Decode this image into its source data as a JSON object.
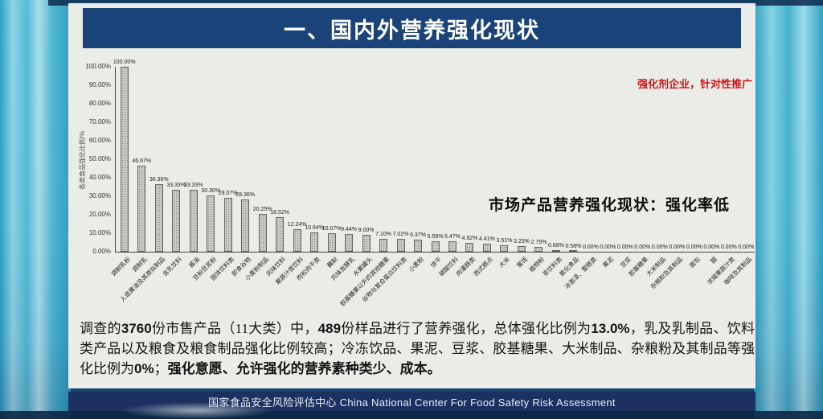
{
  "banner": {
    "title": "一、国内外营养强化现状"
  },
  "annotations": {
    "top_right_red": "强化剂企业，针对性推广",
    "chart_callout": "市场产品营养强化现状：强化率低"
  },
  "chart_data": {
    "type": "bar",
    "title": "",
    "xlabel": "",
    "ylabel": "各类食品强化比例/%",
    "ylim": [
      0,
      100
    ],
    "grid": false,
    "legend": "none",
    "ytick_labels": [
      "0.00%",
      "10.00%",
      "20.00%",
      "30.00%",
      "40.00%",
      "50.00%",
      "60.00%",
      "70.00%",
      "80.00%",
      "90.00%",
      "100.00%"
    ],
    "categories": [
      "调制乳粉",
      "调制乳",
      "人造黄油及其类似制品",
      "含乳饮料",
      "酱油",
      "豆粉豆浆粉",
      "固体饮料类",
      "即食谷物",
      "小麦粉制品",
      "风味饮料",
      "果蔬汁类饮料",
      "肉松肉干类",
      "藕粉",
      "风味发酵乳",
      "水果罐头",
      "胶基糖果以外的其他糖果",
      "谷物与复合蛋白饮料类",
      "小麦粉",
      "饼干",
      "碳酸饮料",
      "肉灌肠类",
      "西式糕点",
      "大米",
      "蜜饯",
      "植物粉",
      "茶饮料类",
      "膨化食品",
      "冰激凌、雪糕类",
      "果泥",
      "豆浆",
      "胶基糖果",
      "大米制品",
      "杂粮粉及其制品",
      "面包",
      "醋",
      "浓缩果蔬汁类",
      "咖啡及其制品"
    ],
    "values": [
      100.0,
      46.67,
      36.36,
      33.33,
      33.33,
      30.3,
      29.07,
      28.36,
      20.25,
      18.52,
      12.24,
      10.64,
      10.07,
      9.44,
      9.0,
      7.1,
      7.02,
      6.37,
      5.59,
      5.47,
      4.92,
      4.41,
      3.51,
      3.23,
      2.79,
      0.68,
      0.58,
      0,
      0,
      0,
      0,
      0,
      0,
      0,
      0,
      0,
      0
    ],
    "value_labels": [
      "100.00%",
      "46.67%",
      "36.36%",
      "33.33%",
      "33.33%",
      "30.30%",
      "29.07%",
      "28.36%",
      "20.25%",
      "18.52%",
      "12.24%",
      "10.64%",
      "10.07%",
      "9.44%",
      "9.00%",
      "7.10%",
      "7.02%",
      "6.37%",
      "5.59%",
      "5.47%",
      "4.92%",
      "4.41%",
      "3.51%",
      "3.23%",
      "2.79%",
      "0.68%",
      "0.58%",
      "0.00%",
      "0.00%",
      "0.00%",
      "0.00%",
      "0.00%",
      "0.00%",
      "0.00%",
      "0.00%",
      "0.00%",
      "0.00%"
    ]
  },
  "body": {
    "segments": [
      {
        "text": "调查的",
        "bold": false
      },
      {
        "text": "3760",
        "bold": true
      },
      {
        "text": "份市售产品（11大类）中，",
        "bold": false
      },
      {
        "text": "489",
        "bold": true
      },
      {
        "text": "份样品进行了营养强化，总体强化比例为",
        "bold": false
      },
      {
        "text": "13.0%",
        "bold": true
      },
      {
        "text": "，乳及乳制品、饮料类产品以及粮食及粮食制品强化比例较高；冷冻饮品、果泥、豆浆、胶基糖果、大米制品、杂粮粉及其制品等强化比例为",
        "bold": false
      },
      {
        "text": "0%",
        "bold": true
      },
      {
        "text": "；",
        "bold": false
      },
      {
        "text": "强化意愿、允许强化的营养素种类少、成本。",
        "bold": true
      }
    ]
  },
  "footer": {
    "text": "国家食品安全风险评估中心 China National Center For Food Safety Risk Assessment"
  },
  "colors": {
    "banner_bg": "#1a4379",
    "footer_bg": "#1c3160",
    "accent_red": "#cf1616",
    "bar_fill": "#c8c8c4",
    "slide_bg": "#ebebe8",
    "stage_teal": "#2fa3c3"
  }
}
